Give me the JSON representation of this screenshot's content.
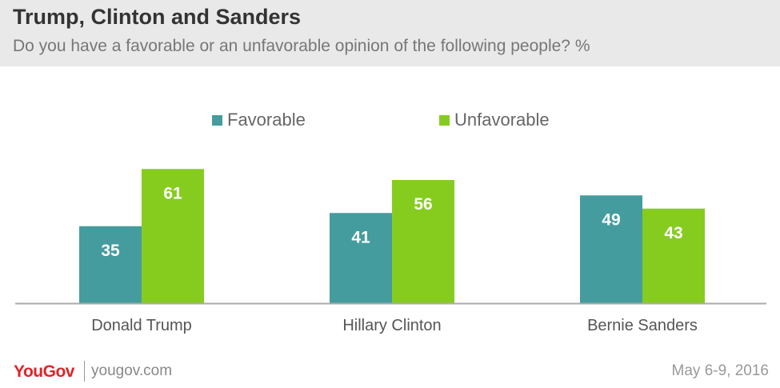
{
  "header": {
    "title": "Trump, Clinton and Sanders",
    "subtitle": "Do you have a favorable or an unfavorable opinion of the following people? %"
  },
  "footer": {
    "logo": "YouGov",
    "site": "yougov.com",
    "date": "May 6-9, 2016"
  },
  "colors": {
    "favorable": "#449c9e",
    "unfavorable": "#86cc1f",
    "baseline": "#aaaaaa"
  },
  "chart_data": {
    "type": "bar",
    "title": "Trump, Clinton and Sanders",
    "subtitle": "Do you have a favorable or an unfavorable opinion of the following people? %",
    "categories": [
      "Donald Trump",
      "Hillary Clinton",
      "Bernie Sanders"
    ],
    "series": [
      {
        "name": "Favorable",
        "values": [
          35,
          41,
          49
        ]
      },
      {
        "name": "Unfavorable",
        "values": [
          61,
          56,
          43
        ]
      }
    ],
    "legend_position": "top-center",
    "grid": false,
    "data_labels": true
  }
}
